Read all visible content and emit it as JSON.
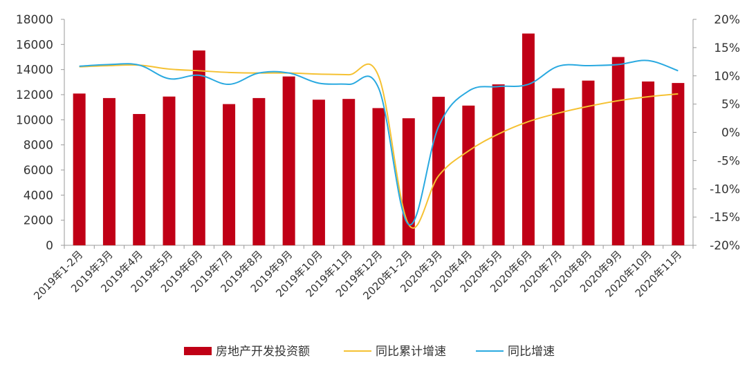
{
  "chart_data": {
    "type": "bar",
    "categories": [
      "2019年1-2月",
      "2019年3月",
      "2019年4月",
      "2019年5月",
      "2019年6月",
      "2019年7月",
      "2019年8月",
      "2019年9月",
      "2019年10月",
      "2019年11月",
      "2019年12月",
      "2020年1-2月",
      "2020年3月",
      "2020年4月",
      "2020年5月",
      "2020年6月",
      "2020年7月",
      "2020年8月",
      "2020年9月",
      "2020年10月",
      "2020年11月"
    ],
    "series": [
      {
        "name": "房地产开发投资额",
        "type": "bar",
        "axis": "left",
        "color": "#c00016",
        "values": [
          12090,
          11730,
          10460,
          11850,
          15520,
          11250,
          11730,
          13450,
          11600,
          11660,
          10930,
          10120,
          11830,
          11130,
          12820,
          16870,
          12510,
          13120,
          15000,
          13050,
          12930
        ]
      },
      {
        "name": "同比累计增速",
        "type": "line",
        "axis": "right",
        "color": "#f5c132",
        "values": [
          11.6,
          11.8,
          11.9,
          11.2,
          10.9,
          10.6,
          10.5,
          10.5,
          10.3,
          10.2,
          9.9,
          -16.3,
          -7.7,
          -3.3,
          -0.3,
          1.9,
          3.4,
          4.6,
          5.6,
          6.3,
          6.8
        ]
      },
      {
        "name": "同比增速",
        "type": "line",
        "axis": "right",
        "color": "#29a9e0",
        "values": [
          11.7,
          12.0,
          11.9,
          9.5,
          10.1,
          8.5,
          10.5,
          10.5,
          8.7,
          8.5,
          7.8,
          -16.3,
          1.0,
          7.3,
          8.1,
          8.5,
          11.7,
          11.8,
          12.0,
          12.7,
          10.9
        ]
      }
    ],
    "y_left": {
      "min": 0,
      "max": 18000,
      "ticks": [
        "0",
        "2000",
        "4000",
        "6000",
        "8000",
        "10000",
        "12000",
        "14000",
        "16000",
        "18000"
      ]
    },
    "y_right": {
      "min": -20,
      "max": 20,
      "ticks": [
        "-20%",
        "-15%",
        "-10%",
        "-5%",
        "0%",
        "5%",
        "10%",
        "15%",
        "20%"
      ]
    },
    "title": "",
    "xlabel": "",
    "ylabel": "",
    "grid": false,
    "legend_position": "bottom"
  }
}
